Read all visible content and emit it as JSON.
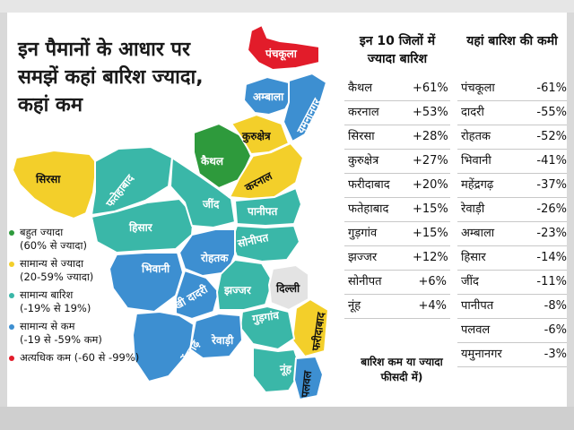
{
  "title": "इन पैमानों के आधार पर समझें कहां बारिश ज्यादा, कहां कम",
  "colors": {
    "bahut_jyada": "#2e9a3c",
    "samanya_se_jyada": "#f3cf2a",
    "samanya": "#3ab7a8",
    "samanya_se_kam": "#3d8fd1",
    "atyadhik_kam": "#e21c2a",
    "delhi": "#e3e3e3"
  },
  "legend": [
    {
      "label": "बहुत ज्यादा",
      "sub": "(60% से ज्यादा)",
      "color": "#2e9a3c"
    },
    {
      "label": "सामान्य से ज्यादा",
      "sub": "(20-59% ज्यादा)",
      "color": "#f3cf2a"
    },
    {
      "label": "सामान्य बारिश",
      "sub": "(-19% से 19%)",
      "color": "#3ab7a8"
    },
    {
      "label": "सामान्य से कम",
      "sub": "(-19 से -59% कम)",
      "color": "#3d8fd1"
    },
    {
      "label": "अत्यधिक कम (-60 से -99%)",
      "sub": "",
      "color": "#e21c2a"
    }
  ],
  "map_labels": {
    "panchkula": "पंचकूला",
    "ambala": "अम्बाला",
    "yamunanagar": "यमुनानगर",
    "kurukshetra": "कुरुक्षेत्र",
    "kaithal": "कैथल",
    "karnal": "करनाल",
    "sirsa": "सिरसा",
    "fatehabad": "फतेहाबाद",
    "jind": "जींद",
    "panipat": "पानीपत",
    "hisar": "हिसार",
    "sonipat": "सोनीपत",
    "bhiwani": "भिवानी",
    "rohtak": "रोहतक",
    "charkhi_dadri": "चरखी दादरी",
    "jhajjar": "झज्जर",
    "delhi": "दिल्ली",
    "faridabad": "फरीदाबाद",
    "gurugram": "गुड़गांव",
    "mahendragarh": "महेंद्रगढ़",
    "rewari": "रेवाड़ी",
    "nuh": "नूंह",
    "palwal": "पलवल"
  },
  "table_high": {
    "heading": "इन 10 जिलों में ज्यादा बारिश",
    "rows": [
      {
        "name": "कैथल",
        "value": "+61%"
      },
      {
        "name": "करनाल",
        "value": "+53%"
      },
      {
        "name": "सिरसा",
        "value": "+28%"
      },
      {
        "name": "कुरुक्षेत्र",
        "value": "+27%"
      },
      {
        "name": "फरीदाबाद",
        "value": "+20%"
      },
      {
        "name": "फतेहाबाद",
        "value": "+15%"
      },
      {
        "name": "गुड़गांव",
        "value": "+15%"
      },
      {
        "name": "झज्जर",
        "value": "+12%"
      },
      {
        "name": "सोनीपत",
        "value": "+6%"
      },
      {
        "name": "नूंह",
        "value": "+4%"
      }
    ]
  },
  "table_low": {
    "heading": "यहां बारिश की कमी",
    "rows": [
      {
        "name": "पंचकूला",
        "value": "-61%"
      },
      {
        "name": "दादरी",
        "value": "-55%"
      },
      {
        "name": "रोहतक",
        "value": "-52%"
      },
      {
        "name": "भिवानी",
        "value": "-41%"
      },
      {
        "name": "महेंद्रगढ़",
        "value": "-37%"
      },
      {
        "name": "रेवाड़ी",
        "value": "-26%"
      },
      {
        "name": "अम्बाला",
        "value": "-23%"
      },
      {
        "name": "हिसार",
        "value": "-14%"
      },
      {
        "name": "जींद",
        "value": "-11%"
      },
      {
        "name": "पानीपत",
        "value": "-8%"
      },
      {
        "name": "पलवल",
        "value": "-6%"
      },
      {
        "name": "यमुनानगर",
        "value": "-3%"
      }
    ]
  },
  "footnote": "बारिश कम या ज्यादा फीसदी में)"
}
